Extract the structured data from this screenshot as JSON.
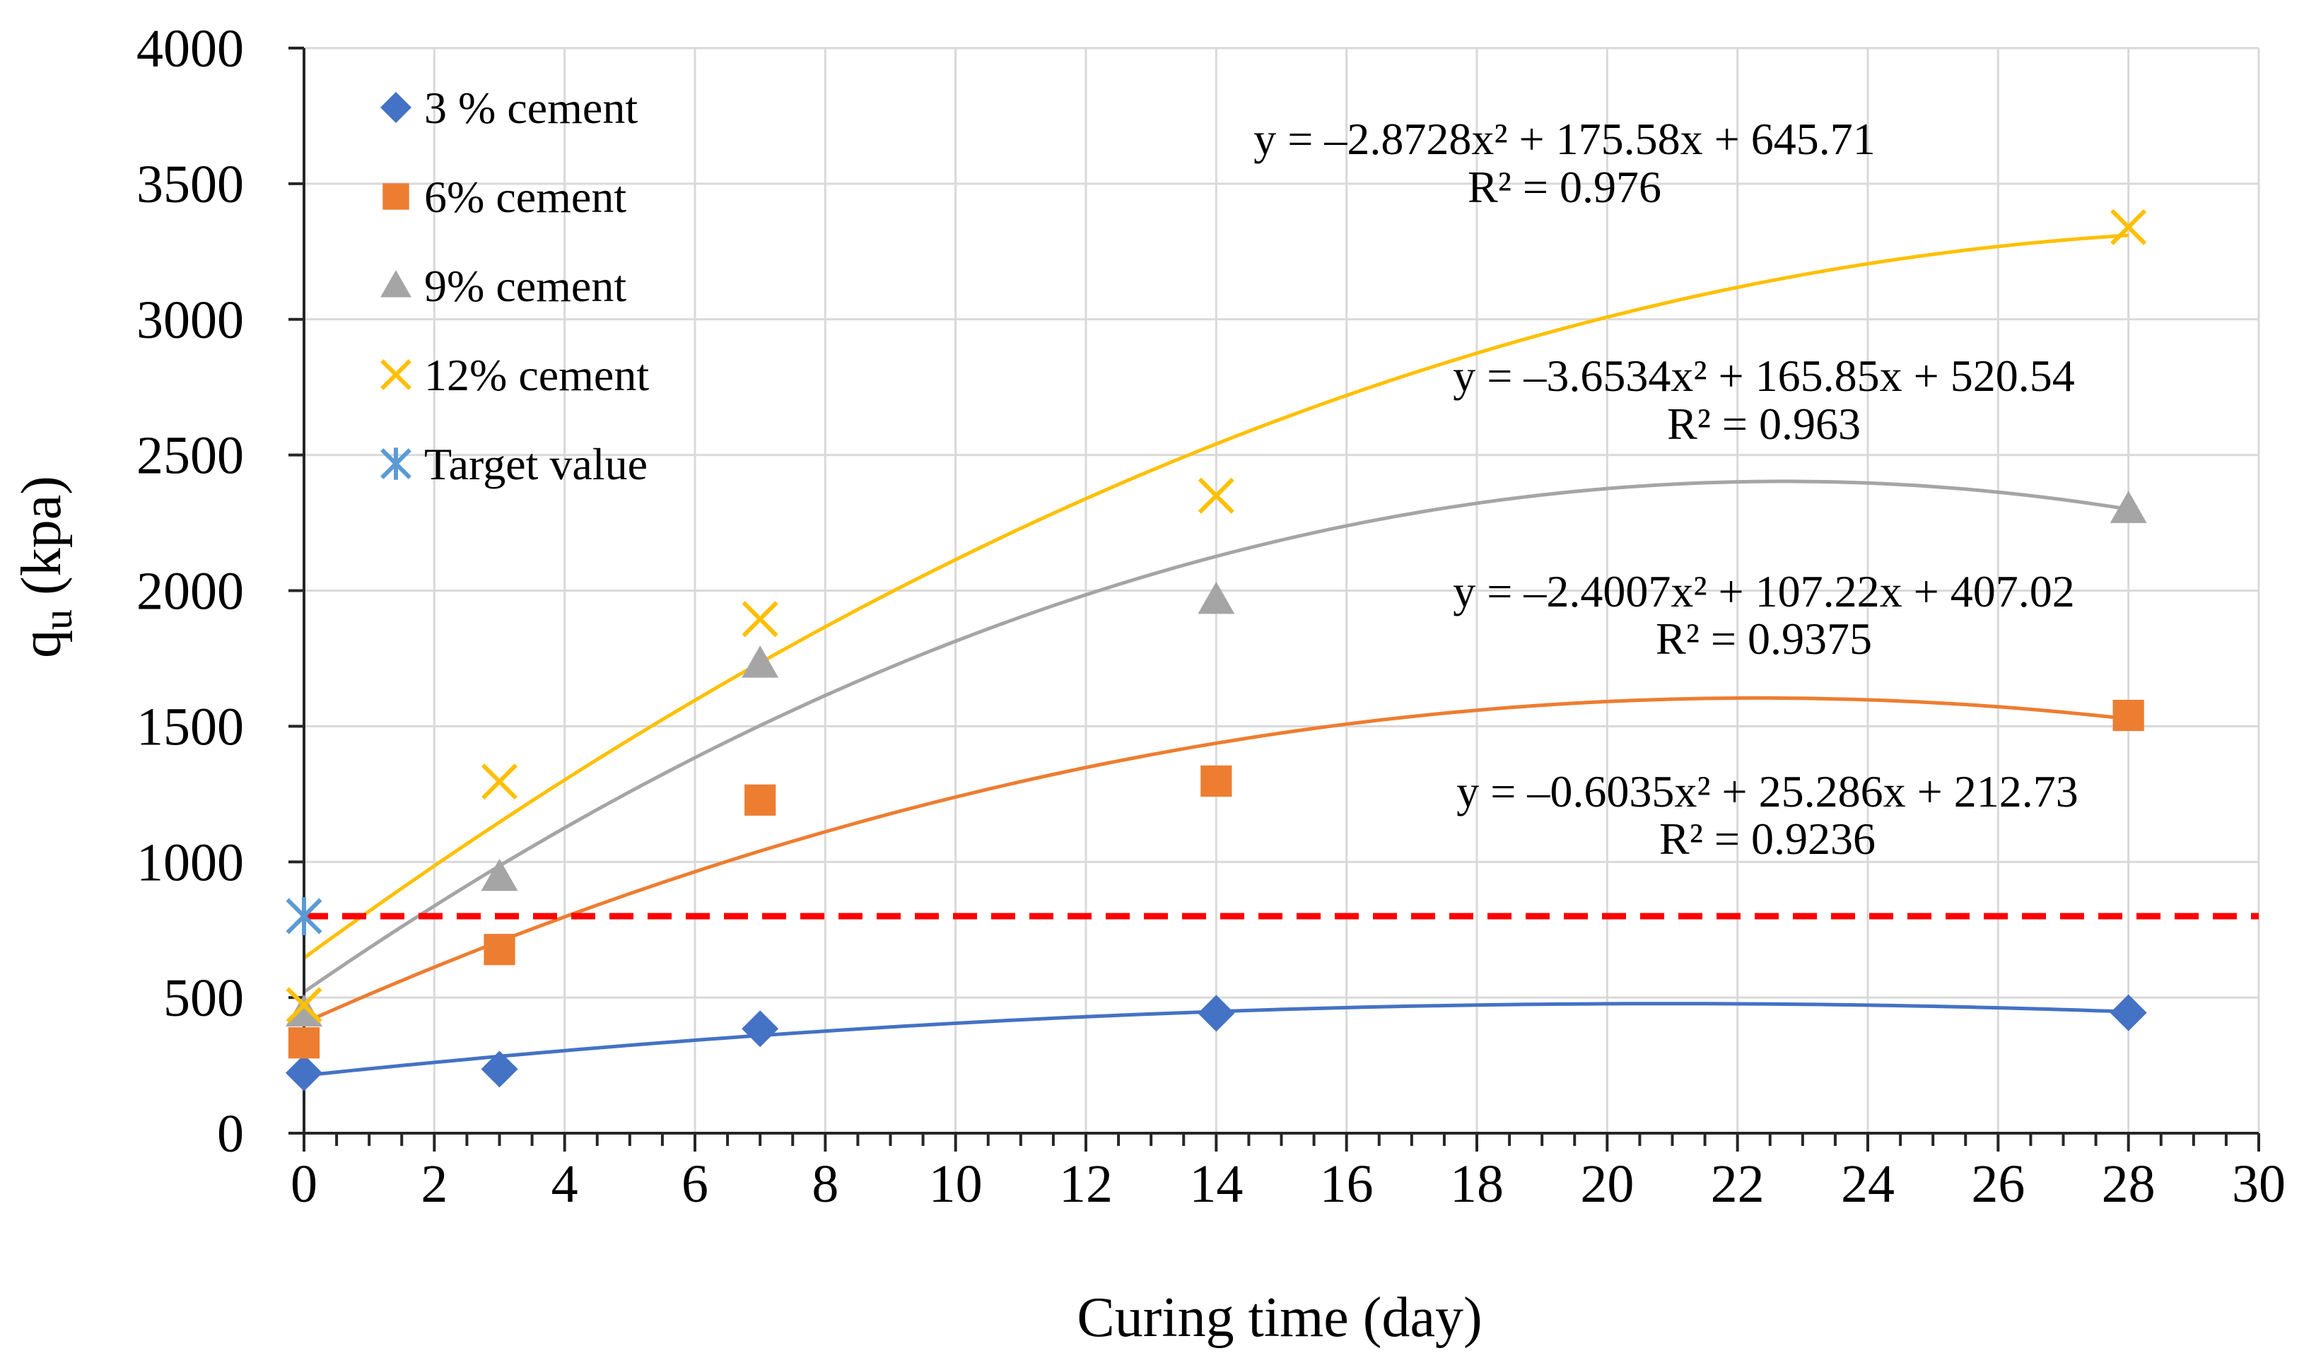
{
  "chart_data": {
    "type": "scatter",
    "title": "",
    "xlabel": "Curing time (day)",
    "ylabel_main": "q",
    "ylabel_sub": "u",
    "ylabel_unit": " (kpa)",
    "xlim": [
      0,
      30
    ],
    "ylim": [
      0,
      4000
    ],
    "x_major_step": 2,
    "x_minor_step": 0.5,
    "y_major_step": 500,
    "x_ticks": [
      "0",
      "2",
      "4",
      "6",
      "8",
      "10",
      "12",
      "14",
      "16",
      "18",
      "20",
      "22",
      "24",
      "26",
      "28",
      "30"
    ],
    "y_ticks": [
      "0",
      "500",
      "1000",
      "1500",
      "2000",
      "2500",
      "3000",
      "3500",
      "4000"
    ],
    "grid": true,
    "legend_position": "top-left",
    "series": [
      {
        "name": "3 % cement",
        "marker": "diamond",
        "color": "#4472C4",
        "x": [
          0,
          3,
          7,
          14,
          28
        ],
        "values": [
          222,
          236,
          385,
          442,
          444
        ],
        "trend": {
          "a": -0.6035,
          "b": 25.286,
          "c": 212.73
        },
        "equation": "y = –0.6035x² + 25.286x + 212.73",
        "r2": "R² = 0.9236"
      },
      {
        "name": "6% cement",
        "marker": "square",
        "color": "#ED7D31",
        "x": [
          0,
          3,
          7,
          14,
          28
        ],
        "values": [
          333,
          677,
          1228,
          1298,
          1540
        ],
        "trend": {
          "a": -2.4007,
          "b": 107.22,
          "c": 407.02
        },
        "equation": "y = –2.4007x² + 107.22x + 407.02",
        "r2": "R² = 0.9375"
      },
      {
        "name": "9% cement",
        "marker": "triangle",
        "color": "#A5A5A5",
        "x": [
          0,
          3,
          7,
          14,
          28
        ],
        "values": [
          444,
          944,
          1730,
          1965,
          2300
        ],
        "trend": {
          "a": -3.6534,
          "b": 165.85,
          "c": 520.54
        },
        "equation": "y = –3.6534x² + 165.85x + 520.54",
        "r2": "R² = 0.963"
      },
      {
        "name": "12% cement",
        "marker": "x",
        "color": "#FFC000",
        "x": [
          0,
          3,
          7,
          14,
          28
        ],
        "values": [
          472,
          1296,
          1895,
          2350,
          3340
        ],
        "trend": {
          "a": -2.8728,
          "b": 175.58,
          "c": 645.71
        },
        "equation": "y = –2.8728x² + 175.58x + 645.71",
        "r2": "R² = 0.976"
      },
      {
        "name": "Target value",
        "marker": "asterisk",
        "color": "#5B9BD5",
        "x": [
          0
        ],
        "values": [
          800
        ]
      }
    ],
    "target_line": {
      "value": 800,
      "color": "#FF0000",
      "style": "dashed"
    }
  }
}
